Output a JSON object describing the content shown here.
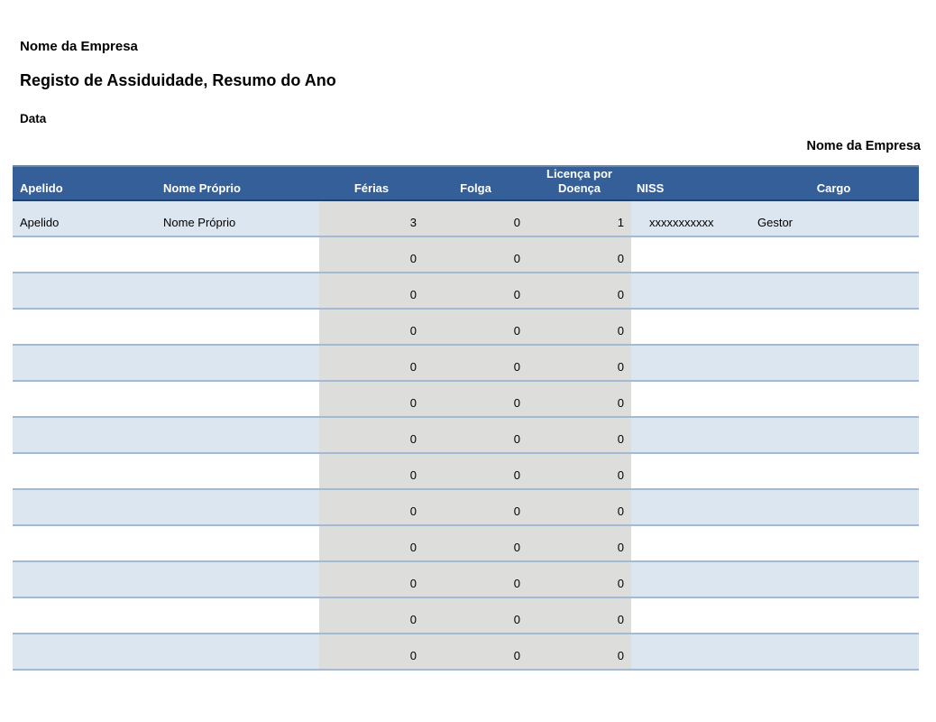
{
  "header": {
    "company_name": "Nome da Empresa",
    "title": "Registo de Assiduidade, Resumo do Ano",
    "date_label": "Data",
    "company_name_right": "Nome da Empresa"
  },
  "colors": {
    "header_bg": "#355F99",
    "stripe_row_bg": "#DCE6F1",
    "shaded_band_bg": "#DDDDDC",
    "row_divider": "#A4B9D2",
    "header_text": "#FFFFFF"
  },
  "table": {
    "columns": [
      {
        "key": "apelido",
        "label": "Apelido"
      },
      {
        "key": "nome",
        "label": "Nome Próprio"
      },
      {
        "key": "ferias",
        "label": "Férias"
      },
      {
        "key": "folga",
        "label": "Folga"
      },
      {
        "key": "licenca",
        "label": "Licença por Doença"
      },
      {
        "key": "niss",
        "label": "NISS"
      },
      {
        "key": "cargo",
        "label": "Cargo"
      }
    ],
    "rows": [
      {
        "apelido": "Apelido",
        "nome": "Nome Próprio",
        "ferias": "3",
        "folga": "0",
        "licenca": "1",
        "niss": "xxxxxxxxxxx",
        "cargo": "Gestor"
      },
      {
        "apelido": "",
        "nome": "",
        "ferias": "0",
        "folga": "0",
        "licenca": "0",
        "niss": "",
        "cargo": ""
      },
      {
        "apelido": "",
        "nome": "",
        "ferias": "0",
        "folga": "0",
        "licenca": "0",
        "niss": "",
        "cargo": ""
      },
      {
        "apelido": "",
        "nome": "",
        "ferias": "0",
        "folga": "0",
        "licenca": "0",
        "niss": "",
        "cargo": ""
      },
      {
        "apelido": "",
        "nome": "",
        "ferias": "0",
        "folga": "0",
        "licenca": "0",
        "niss": "",
        "cargo": ""
      },
      {
        "apelido": "",
        "nome": "",
        "ferias": "0",
        "folga": "0",
        "licenca": "0",
        "niss": "",
        "cargo": ""
      },
      {
        "apelido": "",
        "nome": "",
        "ferias": "0",
        "folga": "0",
        "licenca": "0",
        "niss": "",
        "cargo": ""
      },
      {
        "apelido": "",
        "nome": "",
        "ferias": "0",
        "folga": "0",
        "licenca": "0",
        "niss": "",
        "cargo": ""
      },
      {
        "apelido": "",
        "nome": "",
        "ferias": "0",
        "folga": "0",
        "licenca": "0",
        "niss": "",
        "cargo": ""
      },
      {
        "apelido": "",
        "nome": "",
        "ferias": "0",
        "folga": "0",
        "licenca": "0",
        "niss": "",
        "cargo": ""
      },
      {
        "apelido": "",
        "nome": "",
        "ferias": "0",
        "folga": "0",
        "licenca": "0",
        "niss": "",
        "cargo": ""
      },
      {
        "apelido": "",
        "nome": "",
        "ferias": "0",
        "folga": "0",
        "licenca": "0",
        "niss": "",
        "cargo": ""
      },
      {
        "apelido": "",
        "nome": "",
        "ferias": "0",
        "folga": "0",
        "licenca": "0",
        "niss": "",
        "cargo": ""
      }
    ]
  }
}
